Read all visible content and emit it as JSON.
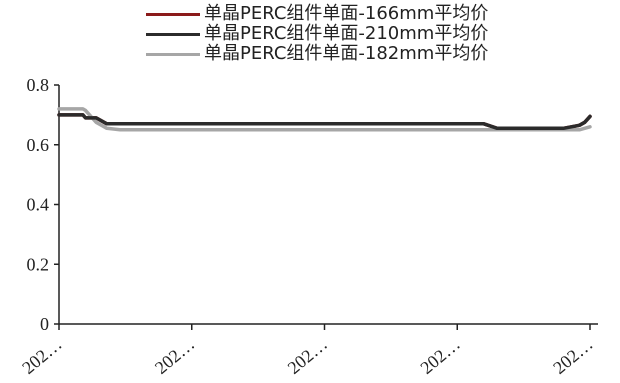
{
  "chart_data": {
    "type": "line",
    "x_tick_labels": [
      "202…",
      "202…",
      "202…",
      "202…",
      "202…"
    ],
    "ylim": [
      0,
      0.8
    ],
    "y_ticks": [
      0,
      0.2,
      0.4,
      0.6,
      0.8
    ],
    "grid": false,
    "legend_position": "top",
    "x_index": [
      0,
      5,
      9,
      10,
      14,
      18,
      23,
      30,
      40,
      60,
      80,
      100,
      120,
      140,
      150,
      160,
      165,
      175,
      190,
      196,
      198,
      200
    ],
    "series": [
      {
        "name": "单晶PERC组件单面-166mm平均价",
        "color": "#8b1a1a",
        "values": [
          0.7,
          0.7,
          0.7,
          0.69,
          0.69,
          0.67,
          0.67,
          0.67,
          0.67,
          0.67,
          0.67,
          0.67,
          0.67,
          0.67,
          0.67,
          0.67,
          0.655,
          0.655,
          0.655,
          0.665,
          0.675,
          0.695
        ]
      },
      {
        "name": "单晶PERC组件单面-210mm平均价",
        "color": "#2b2b2b",
        "values": [
          0.7,
          0.7,
          0.7,
          0.69,
          0.69,
          0.67,
          0.67,
          0.67,
          0.67,
          0.67,
          0.67,
          0.67,
          0.67,
          0.67,
          0.67,
          0.67,
          0.655,
          0.655,
          0.655,
          0.665,
          0.675,
          0.695
        ]
      },
      {
        "name": "单晶PERC组件单面-182mm平均价",
        "color": "#a6a6a6",
        "values": [
          0.72,
          0.72,
          0.72,
          0.715,
          0.675,
          0.655,
          0.65,
          0.65,
          0.65,
          0.65,
          0.65,
          0.65,
          0.65,
          0.65,
          0.65,
          0.65,
          0.65,
          0.65,
          0.65,
          0.65,
          0.655,
          0.66
        ]
      }
    ]
  },
  "colors": {
    "axis": "#222222"
  }
}
